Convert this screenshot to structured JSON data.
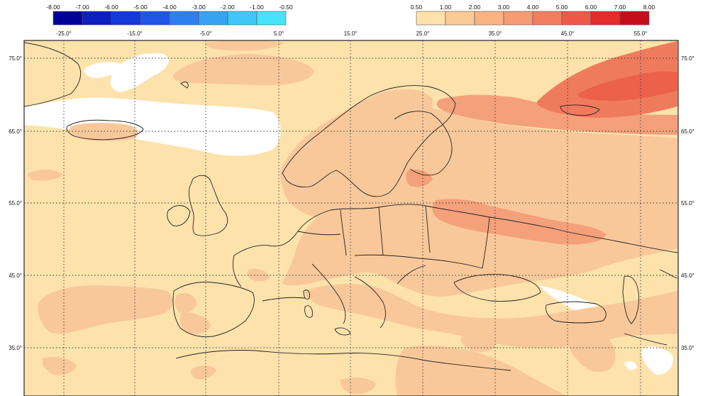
{
  "colors": {
    "ocean": "#ffffff",
    "base": "#fde2ab",
    "land_plus": "#f9c89a",
    "plus_1": "#f6b07f",
    "plus_2": "#f4a07a",
    "plus_3": "#ef7b5d",
    "plus_4": "#eb614a",
    "neg_scale": [
      "#000099",
      "#0d1fbf",
      "#1538d9",
      "#1f56e8",
      "#2d7ff0",
      "#36a3f2",
      "#3dc8f7",
      "#47e3fc"
    ],
    "pos_scale": [
      "#fde2ab",
      "#fbcb96",
      "#f9b484",
      "#f69b73",
      "#f47d5f",
      "#f0584a",
      "#e32c2c",
      "#c40f1a",
      "#a00000"
    ],
    "border": "#222222",
    "grid": "#333333"
  },
  "legend": {
    "negative_labels": [
      "-8.00",
      "-7.00",
      "-6.00",
      "-5.00",
      "-4.00",
      "-3.00",
      "-2.00",
      "-1.00",
      "-0.50"
    ],
    "positive_labels": [
      "0.50",
      "1.00",
      "2.00",
      "3.00",
      "4.00",
      "5.00",
      "6.00",
      "7.00",
      "8.00"
    ]
  },
  "axes": {
    "lon_labels": [
      "-25.0°",
      "-15.0°",
      "-5.0°",
      "5.0°",
      "15.0°",
      "25.0°",
      "35.0°",
      "45.0°",
      "55.0°"
    ],
    "lat_labels": [
      "75.0°",
      "65.0°",
      "55.0°",
      "45.0°",
      "35.0°"
    ]
  }
}
